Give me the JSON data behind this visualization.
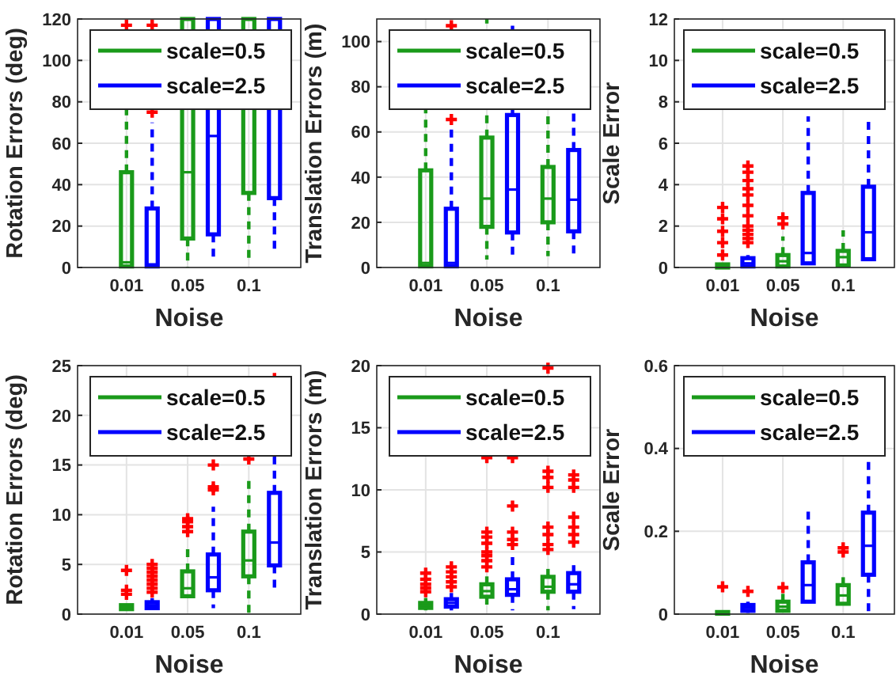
{
  "chart_data": [
    {
      "type": "box",
      "categories": [
        "0.01",
        "0.05",
        "0.1"
      ],
      "xlabel": "Noise",
      "ylabel": "Rotation Errors (deg)",
      "ylim": [
        0,
        120
      ],
      "yticks": [
        0,
        20,
        40,
        60,
        80,
        100,
        120
      ],
      "grid": true,
      "legend": "top right",
      "line_style": "dashed",
      "marker": "cross",
      "series": [
        {
          "name": "scale=0.5",
          "color": "#1a9a1a",
          "boxes": [
            {
              "low": 0,
              "q1": 0.5,
              "median": 2.5,
              "q3": 46,
              "high": 110,
              "outliers": [
                117
              ]
            },
            {
              "low": 0,
              "q1": 14,
              "median": 46,
              "q3": 120,
              "high": 120
            },
            {
              "low": 4.5,
              "q1": 36,
              "median": 120,
              "q3": 120,
              "high": 120
            }
          ]
        },
        {
          "name": "scale=2.5",
          "color": "#0000ff",
          "boxes": [
            {
              "low": 0,
              "q1": 0.5,
              "median": 1.5,
              "q3": 28.5,
              "high": 70,
              "outliers": [
                75,
                117
              ]
            },
            {
              "low": 4,
              "q1": 16,
              "median": 63.5,
              "q3": 120,
              "high": 120
            },
            {
              "low": 7,
              "q1": 33.5,
              "median": 120,
              "q3": 120,
              "high": 120
            }
          ]
        }
      ]
    },
    {
      "type": "box",
      "categories": [
        "0.01",
        "0.05",
        "0.1"
      ],
      "xlabel": "Noise",
      "ylabel": "Translation Errors (m)",
      "ylim": [
        0,
        110
      ],
      "yticks": [
        0,
        20,
        40,
        60,
        80,
        100
      ],
      "grid": true,
      "legend": "top right",
      "line_style": "dashed",
      "marker": "cross",
      "series": [
        {
          "name": "scale=0.5",
          "color": "#1a9a1a",
          "boxes": [
            {
              "low": 0,
              "q1": 0.5,
              "median": 2,
              "q3": 43,
              "high": 105
            },
            {
              "low": 3.5,
              "q1": 18,
              "median": 30.5,
              "q3": 57.5,
              "high": 110
            },
            {
              "low": 5,
              "q1": 20,
              "median": 30.5,
              "q3": 44.5,
              "high": 80
            }
          ]
        },
        {
          "name": "scale=2.5",
          "color": "#0000ff",
          "boxes": [
            {
              "low": 0,
              "q1": 0.5,
              "median": 2,
              "q3": 26,
              "high": 62,
              "outliers": [
                65.5,
                107
              ]
            },
            {
              "low": 3.5,
              "q1": 15.5,
              "median": 34.5,
              "q3": 67.5,
              "high": 107
            },
            {
              "low": 4.5,
              "q1": 16,
              "median": 30,
              "q3": 52,
              "high": 105
            }
          ]
        }
      ]
    },
    {
      "type": "box",
      "categories": [
        "0.01",
        "0.05",
        "0.1"
      ],
      "xlabel": "Noise",
      "ylabel": "Scale Error",
      "ylim": [
        0,
        12
      ],
      "yticks": [
        0,
        2,
        4,
        6,
        8,
        10,
        12
      ],
      "grid": true,
      "legend": "top right",
      "line_style": "dashed",
      "marker": "cross",
      "series": [
        {
          "name": "scale=0.5",
          "color": "#1a9a1a",
          "boxes": [
            {
              "low": 0,
              "q1": 0,
              "median": 0.05,
              "q3": 0.15,
              "high": 0.15,
              "outliers": [
                0.6,
                1.2,
                1.75,
                2.35,
                2.9
              ]
            },
            {
              "low": 0,
              "q1": 0.05,
              "median": 0.3,
              "q3": 0.6,
              "high": 1.5,
              "outliers": [
                2.1,
                2.4
              ]
            },
            {
              "low": 0,
              "q1": 0.1,
              "median": 0.5,
              "q3": 0.8,
              "high": 1.8
            }
          ]
        },
        {
          "name": "scale=2.5",
          "color": "#0000ff",
          "boxes": [
            {
              "low": 0,
              "q1": 0.05,
              "median": 0.2,
              "q3": 0.45,
              "high": 0.6,
              "outliers": [
                1.2,
                1.4,
                1.6,
                1.8,
                2,
                2.5,
                3,
                3.5,
                3.8,
                4.2,
                4.6,
                4.9
              ]
            },
            {
              "low": 0.2,
              "q1": 0.2,
              "median": 0.7,
              "q3": 3.6,
              "high": 7.3
            },
            {
              "low": 0.4,
              "q1": 0.4,
              "median": 1.7,
              "q3": 3.9,
              "high": 7.1
            }
          ]
        }
      ]
    },
    {
      "type": "box",
      "categories": [
        "0.01",
        "0.05",
        "0.1"
      ],
      "xlabel": "Noise",
      "ylabel": "Rotation Errors (deg)",
      "ylim": [
        0,
        25
      ],
      "yticks": [
        0,
        5,
        10,
        15,
        20,
        25
      ],
      "grid": true,
      "legend": "top right",
      "line_style": "dashed",
      "marker": "cross",
      "series": [
        {
          "name": "scale=0.5",
          "color": "#1a9a1a",
          "boxes": [
            {
              "low": 0.4,
              "q1": 0.5,
              "median": 0.7,
              "q3": 0.9,
              "high": 1,
              "outliers": [
                2,
                2.4,
                4.4
              ]
            },
            {
              "low": 1.8,
              "q1": 1.8,
              "median": 2.6,
              "q3": 4.3,
              "high": 7,
              "outliers": [
                8.3,
                8.8,
                9.3,
                9.6
              ]
            },
            {
              "low": 0,
              "q1": 3.8,
              "median": 5.4,
              "q3": 8.3,
              "high": 13.4,
              "outliers": [
                15.6
              ]
            }
          ]
        },
        {
          "name": "scale=2.5",
          "color": "#0000ff",
          "boxes": [
            {
              "low": 0.4,
              "q1": 0.6,
              "median": 0.9,
              "q3": 1.2,
              "high": 1.6,
              "outliers": [
                2.2,
                2.6,
                3,
                3.4,
                3.8,
                4.2,
                4.6,
                5
              ]
            },
            {
              "low": 0.6,
              "q1": 2.4,
              "median": 3.7,
              "q3": 6,
              "high": 10.8,
              "outliers": [
                12.5,
                12.8,
                15
              ]
            },
            {
              "low": 2.2,
              "q1": 4.9,
              "median": 7.2,
              "q3": 12.2,
              "high": 17,
              "outliers": [
                23.7
              ]
            }
          ]
        }
      ]
    },
    {
      "type": "box",
      "categories": [
        "0.01",
        "0.05",
        "0.1"
      ],
      "xlabel": "Noise",
      "ylabel": "Translation Errors (m)",
      "ylim": [
        0,
        20
      ],
      "yticks": [
        0,
        5,
        10,
        15,
        20
      ],
      "grid": true,
      "legend": "top right",
      "line_style": "dashed",
      "marker": "cross",
      "series": [
        {
          "name": "scale=0.5",
          "color": "#1a9a1a",
          "boxes": [
            {
              "low": 0.3,
              "q1": 0.5,
              "median": 0.7,
              "q3": 0.9,
              "high": 1.3,
              "outliers": [
                1.8,
                2.1,
                2.4,
                2.8,
                3.3
              ]
            },
            {
              "low": 0.3,
              "q1": 1.4,
              "median": 1.85,
              "q3": 2.4,
              "high": 3.5,
              "outliers": [
                3.8,
                4.3,
                4.7,
                5,
                5.7,
                6.2,
                6.6,
                12.6
              ]
            },
            {
              "low": 0.3,
              "q1": 1.8,
              "median": 2.2,
              "q3": 3,
              "high": 4,
              "outliers": [
                5.2,
                5.6,
                6.4,
                7,
                10.2,
                11,
                11.5,
                19.8
              ]
            }
          ]
        },
        {
          "name": "scale=2.5",
          "color": "#0000ff",
          "boxes": [
            {
              "low": 0.3,
              "q1": 0.6,
              "median": 0.9,
              "q3": 1.2,
              "high": 1.7,
              "outliers": [
                2.2,
                2.6,
                3,
                3.4,
                3.8
              ]
            },
            {
              "low": 0.3,
              "q1": 1.55,
              "median": 2,
              "q3": 2.8,
              "high": 4.6,
              "outliers": [
                5.6,
                6,
                6.6,
                8.7,
                12.6
              ]
            },
            {
              "low": 0.4,
              "q1": 1.8,
              "median": 2.4,
              "q3": 3.3,
              "high": 4.1,
              "outliers": [
                5.8,
                6.4,
                7,
                7.8,
                10.2,
                10.8,
                11.2
              ]
            }
          ]
        }
      ]
    },
    {
      "type": "box",
      "categories": [
        "0.01",
        "0.05",
        "0.1"
      ],
      "xlabel": "Noise",
      "ylabel": "Scale Error",
      "ylim": [
        0,
        0.6
      ],
      "yticks": [
        0,
        0.2,
        0.4,
        0.6
      ],
      "grid": true,
      "legend": "top right",
      "line_style": "dashed",
      "marker": "cross",
      "series": [
        {
          "name": "scale=0.5",
          "color": "#1a9a1a",
          "boxes": [
            {
              "low": 0,
              "q1": 0.001,
              "median": 0.003,
              "q3": 0.005,
              "high": 0.007,
              "outliers": [
                0.066
              ]
            },
            {
              "low": 0.008,
              "q1": 0.008,
              "median": 0.018,
              "q3": 0.03,
              "high": 0.05,
              "outliers": [
                0.064
              ]
            },
            {
              "low": 0.025,
              "q1": 0.025,
              "median": 0.045,
              "q3": 0.07,
              "high": 0.1,
              "outliers": [
                0.15,
                0.16
              ]
            }
          ]
        },
        {
          "name": "scale=2.5",
          "color": "#0000ff",
          "boxes": [
            {
              "low": 0.003,
              "q1": 0.008,
              "median": 0.015,
              "q3": 0.022,
              "high": 0.03,
              "outliers": [
                0.055
              ]
            },
            {
              "low": 0.03,
              "q1": 0.03,
              "median": 0.07,
              "q3": 0.125,
              "high": 0.26
            },
            {
              "low": 0,
              "q1": 0.095,
              "median": 0.165,
              "q3": 0.245,
              "high": 0.38
            }
          ]
        }
      ]
    }
  ]
}
